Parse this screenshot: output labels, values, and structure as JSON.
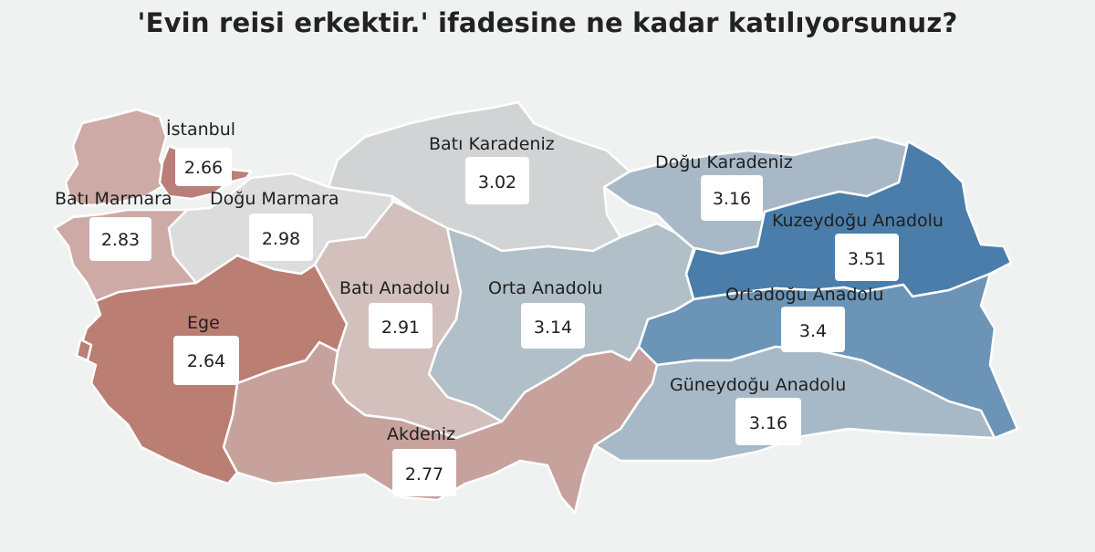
{
  "title": "'Evin reisi erkektir.' ifadesine ne kadar katılıyorsunuz?",
  "colors": {
    "background": "#f0f1f1",
    "low": "#bb7e73",
    "high": "#4a7daa",
    "border": "#ffffff"
  },
  "regions": {
    "istanbul": {
      "name": "İstanbul",
      "value": "2.66",
      "color": "#b97f78"
    },
    "bati_marmara": {
      "name": "Batı Marmara",
      "value": "2.83",
      "color": "#cdaaa6"
    },
    "dogu_marmara": {
      "name": "Doğu Marmara",
      "value": "2.98",
      "color": "#dcdcdc"
    },
    "ege": {
      "name": "Ege",
      "value": "2.64",
      "color": "#bb7e73"
    },
    "bati_anadolu": {
      "name": "Batı Anadolu",
      "value": "2.91",
      "color": "#d3c0bd"
    },
    "akdeniz": {
      "name": "Akdeniz",
      "value": "2.77",
      "color": "#c7a29c"
    },
    "bati_karadeniz": {
      "name": "Batı Karadeniz",
      "value": "3.02",
      "color": "#d1d3d5"
    },
    "orta_anadolu": {
      "name": "Orta Anadolu",
      "value": "3.14",
      "color": "#b1bfc8"
    },
    "dogu_karadeniz": {
      "name": "Doğu Karadeniz",
      "value": "3.16",
      "color": "#a8b8c6"
    },
    "kuzeydogu_anadolu": {
      "name": "Kuzeydoğu Anadolu",
      "value": "3.51",
      "color": "#4a7daa"
    },
    "ortadogu_anadolu": {
      "name": "Ortadoğu Anadolu",
      "value": "3.4",
      "color": "#6c94b6"
    },
    "guneydogu_anadolu": {
      "name": "Güneydoğu Anadolu",
      "value": "3.16",
      "color": "#a7b9c7"
    }
  }
}
